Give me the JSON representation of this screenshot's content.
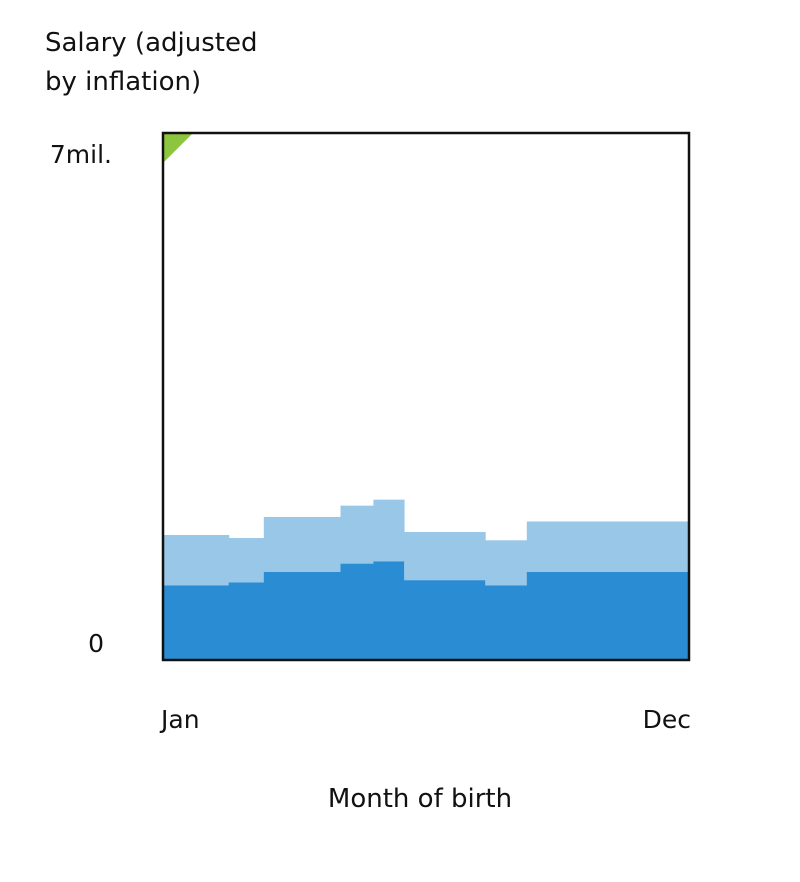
{
  "chart_data": {
    "type": "area",
    "title": "",
    "ylabel_lines": [
      "Salary (adjusted",
      "by inflation)"
    ],
    "xlabel": "Month of birth",
    "y_tick_labels": {
      "top": "7mil.",
      "bottom": "0"
    },
    "x_tick_labels": {
      "start": "Jan",
      "end": "Dec"
    },
    "ylim": [
      0,
      7000000
    ],
    "x_domain": [
      0,
      12
    ],
    "grid": false,
    "legend": "none",
    "colors": {
      "lower": "#2a8dd3",
      "upper": "#99c7e8",
      "corner_marker": "#8cc63f",
      "frame": "#111111"
    },
    "steps": [
      {
        "x0": 0,
        "x1": 1.5,
        "lower": 990000,
        "total": 1660000
      },
      {
        "x0": 1.5,
        "x1": 2.3,
        "lower": 1030000,
        "total": 1620000
      },
      {
        "x0": 2.3,
        "x1": 4.05,
        "lower": 1170000,
        "total": 1900000
      },
      {
        "x0": 4.05,
        "x1": 4.8,
        "lower": 1280000,
        "total": 2050000
      },
      {
        "x0": 4.8,
        "x1": 5.5,
        "lower": 1310000,
        "total": 2130000
      },
      {
        "x0": 5.5,
        "x1": 7.35,
        "lower": 1060000,
        "total": 1700000
      },
      {
        "x0": 7.35,
        "x1": 8.3,
        "lower": 990000,
        "total": 1590000
      },
      {
        "x0": 8.3,
        "x1": 12,
        "lower": 1170000,
        "total": 1840000
      }
    ],
    "corner_marker_value": 7000000
  }
}
